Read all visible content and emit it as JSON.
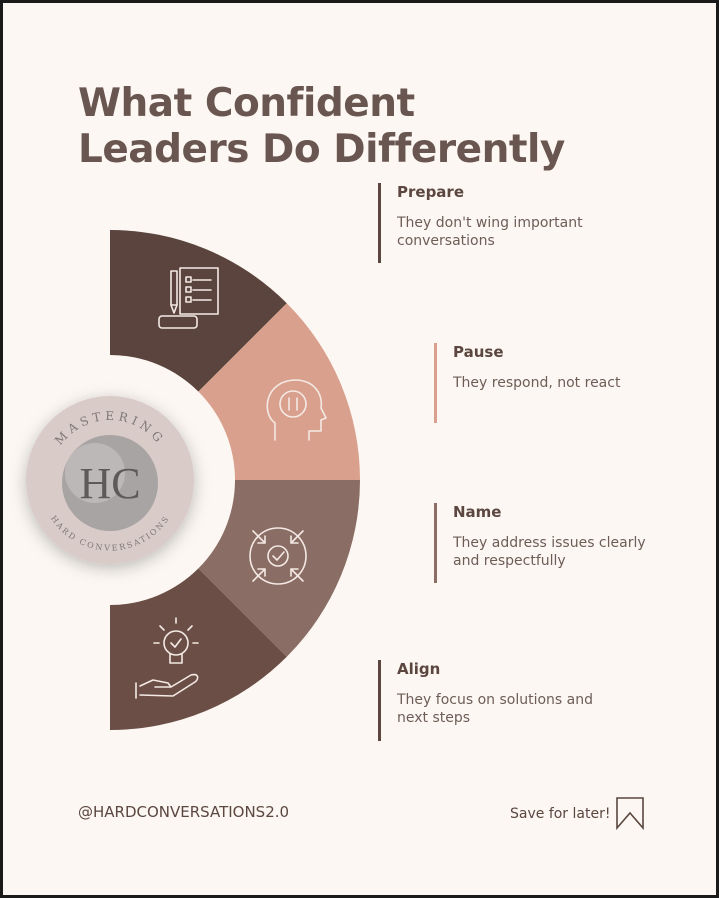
{
  "header": {
    "title": "What Confident Leaders Do Differently"
  },
  "logo": {
    "top_text": "MASTERING",
    "initials": "HC",
    "bottom_text": "HARD CONVERSATIONS"
  },
  "steps": [
    {
      "title": "Prepare",
      "text": "They don't wing important conversations"
    },
    {
      "title": "Pause",
      "text": "They respond, not react"
    },
    {
      "title": "Name",
      "text": "They address issues clearly and respectfully"
    },
    {
      "title": "Align",
      "text": "They focus on solutions and next steps"
    }
  ],
  "footer": {
    "handle": "@HARDCONVERSATIONS2.0",
    "cta": "Save for later!"
  }
}
